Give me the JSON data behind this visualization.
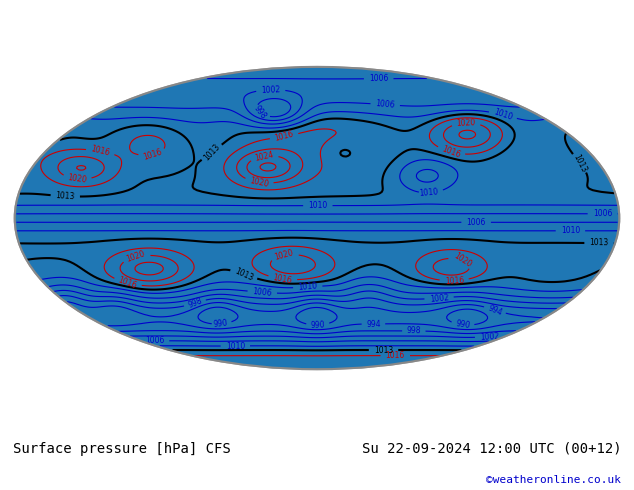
{
  "title_left": "Surface pressure [hPa] CFS",
  "title_right": "Su 22-09-2024 12:00 UTC (00+12)",
  "watermark": "©weatheronline.co.uk",
  "bg_color": "#ffffff",
  "map_bg": "#f0f0f0",
  "label_color_black": "#000000",
  "label_color_blue": "#0000cc",
  "label_color_red": "#cc0000",
  "contour_black": "#000000",
  "contour_blue": "#0000cc",
  "contour_red": "#cc0000",
  "fill_green": "#90ee90",
  "fill_lightblue": "#add8e6",
  "fill_red_light": "#ffb6b6",
  "land_color": "#c8c8c8",
  "ocean_color": "#ffffff",
  "font_size_title": 10,
  "font_size_label": 7,
  "font_size_watermark": 8
}
